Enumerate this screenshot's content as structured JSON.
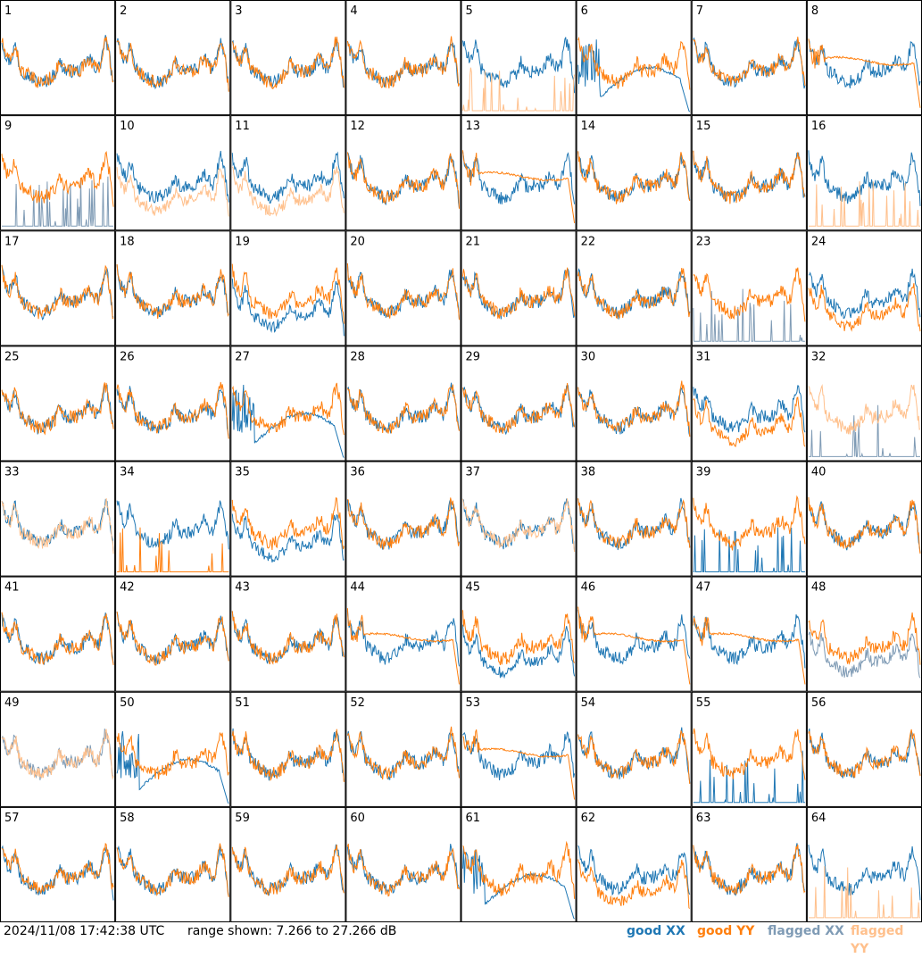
{
  "chart_data": {
    "type": "line",
    "layout": "8x8 small multiples",
    "panels": [
      "1",
      "2",
      "3",
      "4",
      "5",
      "6",
      "7",
      "8",
      "9",
      "10",
      "11",
      "12",
      "13",
      "14",
      "15",
      "16",
      "17",
      "18",
      "19",
      "20",
      "21",
      "22",
      "23",
      "24",
      "25",
      "26",
      "27",
      "28",
      "29",
      "30",
      "31",
      "32",
      "33",
      "34",
      "35",
      "36",
      "37",
      "38",
      "39",
      "40",
      "41",
      "42",
      "43",
      "44",
      "45",
      "46",
      "47",
      "48",
      "49",
      "50",
      "51",
      "52",
      "53",
      "54",
      "55",
      "56",
      "57",
      "58",
      "59",
      "60",
      "61",
      "62",
      "63",
      "64"
    ],
    "y_range_db": [
      7.266,
      27.266
    ],
    "series": [
      {
        "name": "good XX",
        "color": "#1f77b4"
      },
      {
        "name": "good YY",
        "color": "#ff7f0e"
      },
      {
        "name": "flagged XX",
        "color": "#7f9bb5"
      },
      {
        "name": "flagged YY",
        "color": "#ffc08c"
      }
    ],
    "panel_styles": {
      "1": {
        "xx": [
          "good",
          "normal"
        ],
        "yy": [
          "good",
          "normal"
        ]
      },
      "5": {
        "xx": [
          "good",
          "normal"
        ],
        "yy": [
          "flagged",
          "spikes"
        ]
      },
      "6": {
        "xx": [
          "good",
          "drop"
        ],
        "yy": [
          "good",
          "normal"
        ]
      },
      "8": {
        "xx": [
          "good",
          "normal"
        ],
        "yy": [
          "good",
          "plateau"
        ]
      },
      "9": {
        "xx": [
          "flagged",
          "spikes"
        ],
        "yy": [
          "good",
          "normal"
        ]
      },
      "10": {
        "xx": [
          "good",
          "normal"
        ],
        "yy": [
          "flagged",
          "low"
        ]
      },
      "11": {
        "xx": [
          "good",
          "normal"
        ],
        "yy": [
          "flagged",
          "low"
        ]
      },
      "13": {
        "xx": [
          "good",
          "normal"
        ],
        "yy": [
          "good",
          "plateau"
        ]
      },
      "16": {
        "xx": [
          "good",
          "normal"
        ],
        "yy": [
          "flagged",
          "spikes"
        ]
      },
      "19": {
        "xx": [
          "good",
          "low"
        ],
        "yy": [
          "good",
          "normal"
        ]
      },
      "23": {
        "xx": [
          "flagged",
          "spikes"
        ],
        "yy": [
          "good",
          "normal"
        ]
      },
      "24": {
        "xx": [
          "good",
          "normal"
        ],
        "yy": [
          "good",
          "low"
        ]
      },
      "27": {
        "xx": [
          "good",
          "drop"
        ],
        "yy": [
          "good",
          "normal"
        ]
      },
      "31": {
        "xx": [
          "good",
          "normal"
        ],
        "yy": [
          "good",
          "low"
        ]
      },
      "32": {
        "xx": [
          "flagged",
          "spikes"
        ],
        "yy": [
          "flagged",
          "normal"
        ]
      },
      "33": {
        "xx": [
          "good",
          "normal"
        ],
        "yy": [
          "flagged",
          "normal"
        ]
      },
      "34": {
        "xx": [
          "good",
          "normal"
        ],
        "yy": [
          "good",
          "spikes"
        ]
      },
      "35": {
        "xx": [
          "good",
          "low"
        ],
        "yy": [
          "good",
          "normal"
        ]
      },
      "37": {
        "xx": [
          "good",
          "normal"
        ],
        "yy": [
          "flagged",
          "normal"
        ]
      },
      "39": {
        "xx": [
          "good",
          "spikes"
        ],
        "yy": [
          "good",
          "normal"
        ]
      },
      "44": {
        "xx": [
          "good",
          "normal"
        ],
        "yy": [
          "good",
          "plateau"
        ]
      },
      "45": {
        "xx": [
          "good",
          "low"
        ],
        "yy": [
          "good",
          "normal"
        ]
      },
      "46": {
        "xx": [
          "good",
          "normal"
        ],
        "yy": [
          "good",
          "plateau"
        ]
      },
      "47": {
        "xx": [
          "good",
          "normal"
        ],
        "yy": [
          "good",
          "plateau"
        ]
      },
      "48": {
        "xx": [
          "flagged",
          "low"
        ],
        "yy": [
          "good",
          "normal"
        ]
      },
      "49": {
        "xx": [
          "flagged",
          "normal"
        ],
        "yy": [
          "flagged",
          "normal"
        ]
      },
      "50": {
        "xx": [
          "good",
          "drop"
        ],
        "yy": [
          "good",
          "normal"
        ]
      },
      "53": {
        "xx": [
          "good",
          "normal"
        ],
        "yy": [
          "good",
          "plateau"
        ]
      },
      "55": {
        "xx": [
          "good",
          "spikes"
        ],
        "yy": [
          "good",
          "normal"
        ]
      },
      "61": {
        "xx": [
          "good",
          "drop"
        ],
        "yy": [
          "good",
          "normal"
        ]
      },
      "62": {
        "xx": [
          "good",
          "normal"
        ],
        "yy": [
          "good",
          "low"
        ]
      },
      "64": {
        "xx": [
          "good",
          "normal"
        ],
        "yy": [
          "flagged",
          "spikes"
        ]
      }
    }
  },
  "footer": {
    "timestamp": "2024/11/08 17:42:38 UTC",
    "range_text": "range shown: 7.266 to 27.266 dB",
    "legend": [
      {
        "label": "good XX",
        "color": "#1f77b4"
      },
      {
        "label": "good YY",
        "color": "#ff7f0e"
      },
      {
        "label": "flagged XX",
        "color": "#7f9bb5"
      },
      {
        "label": "flagged YY",
        "color": "#ffc08c"
      }
    ]
  }
}
